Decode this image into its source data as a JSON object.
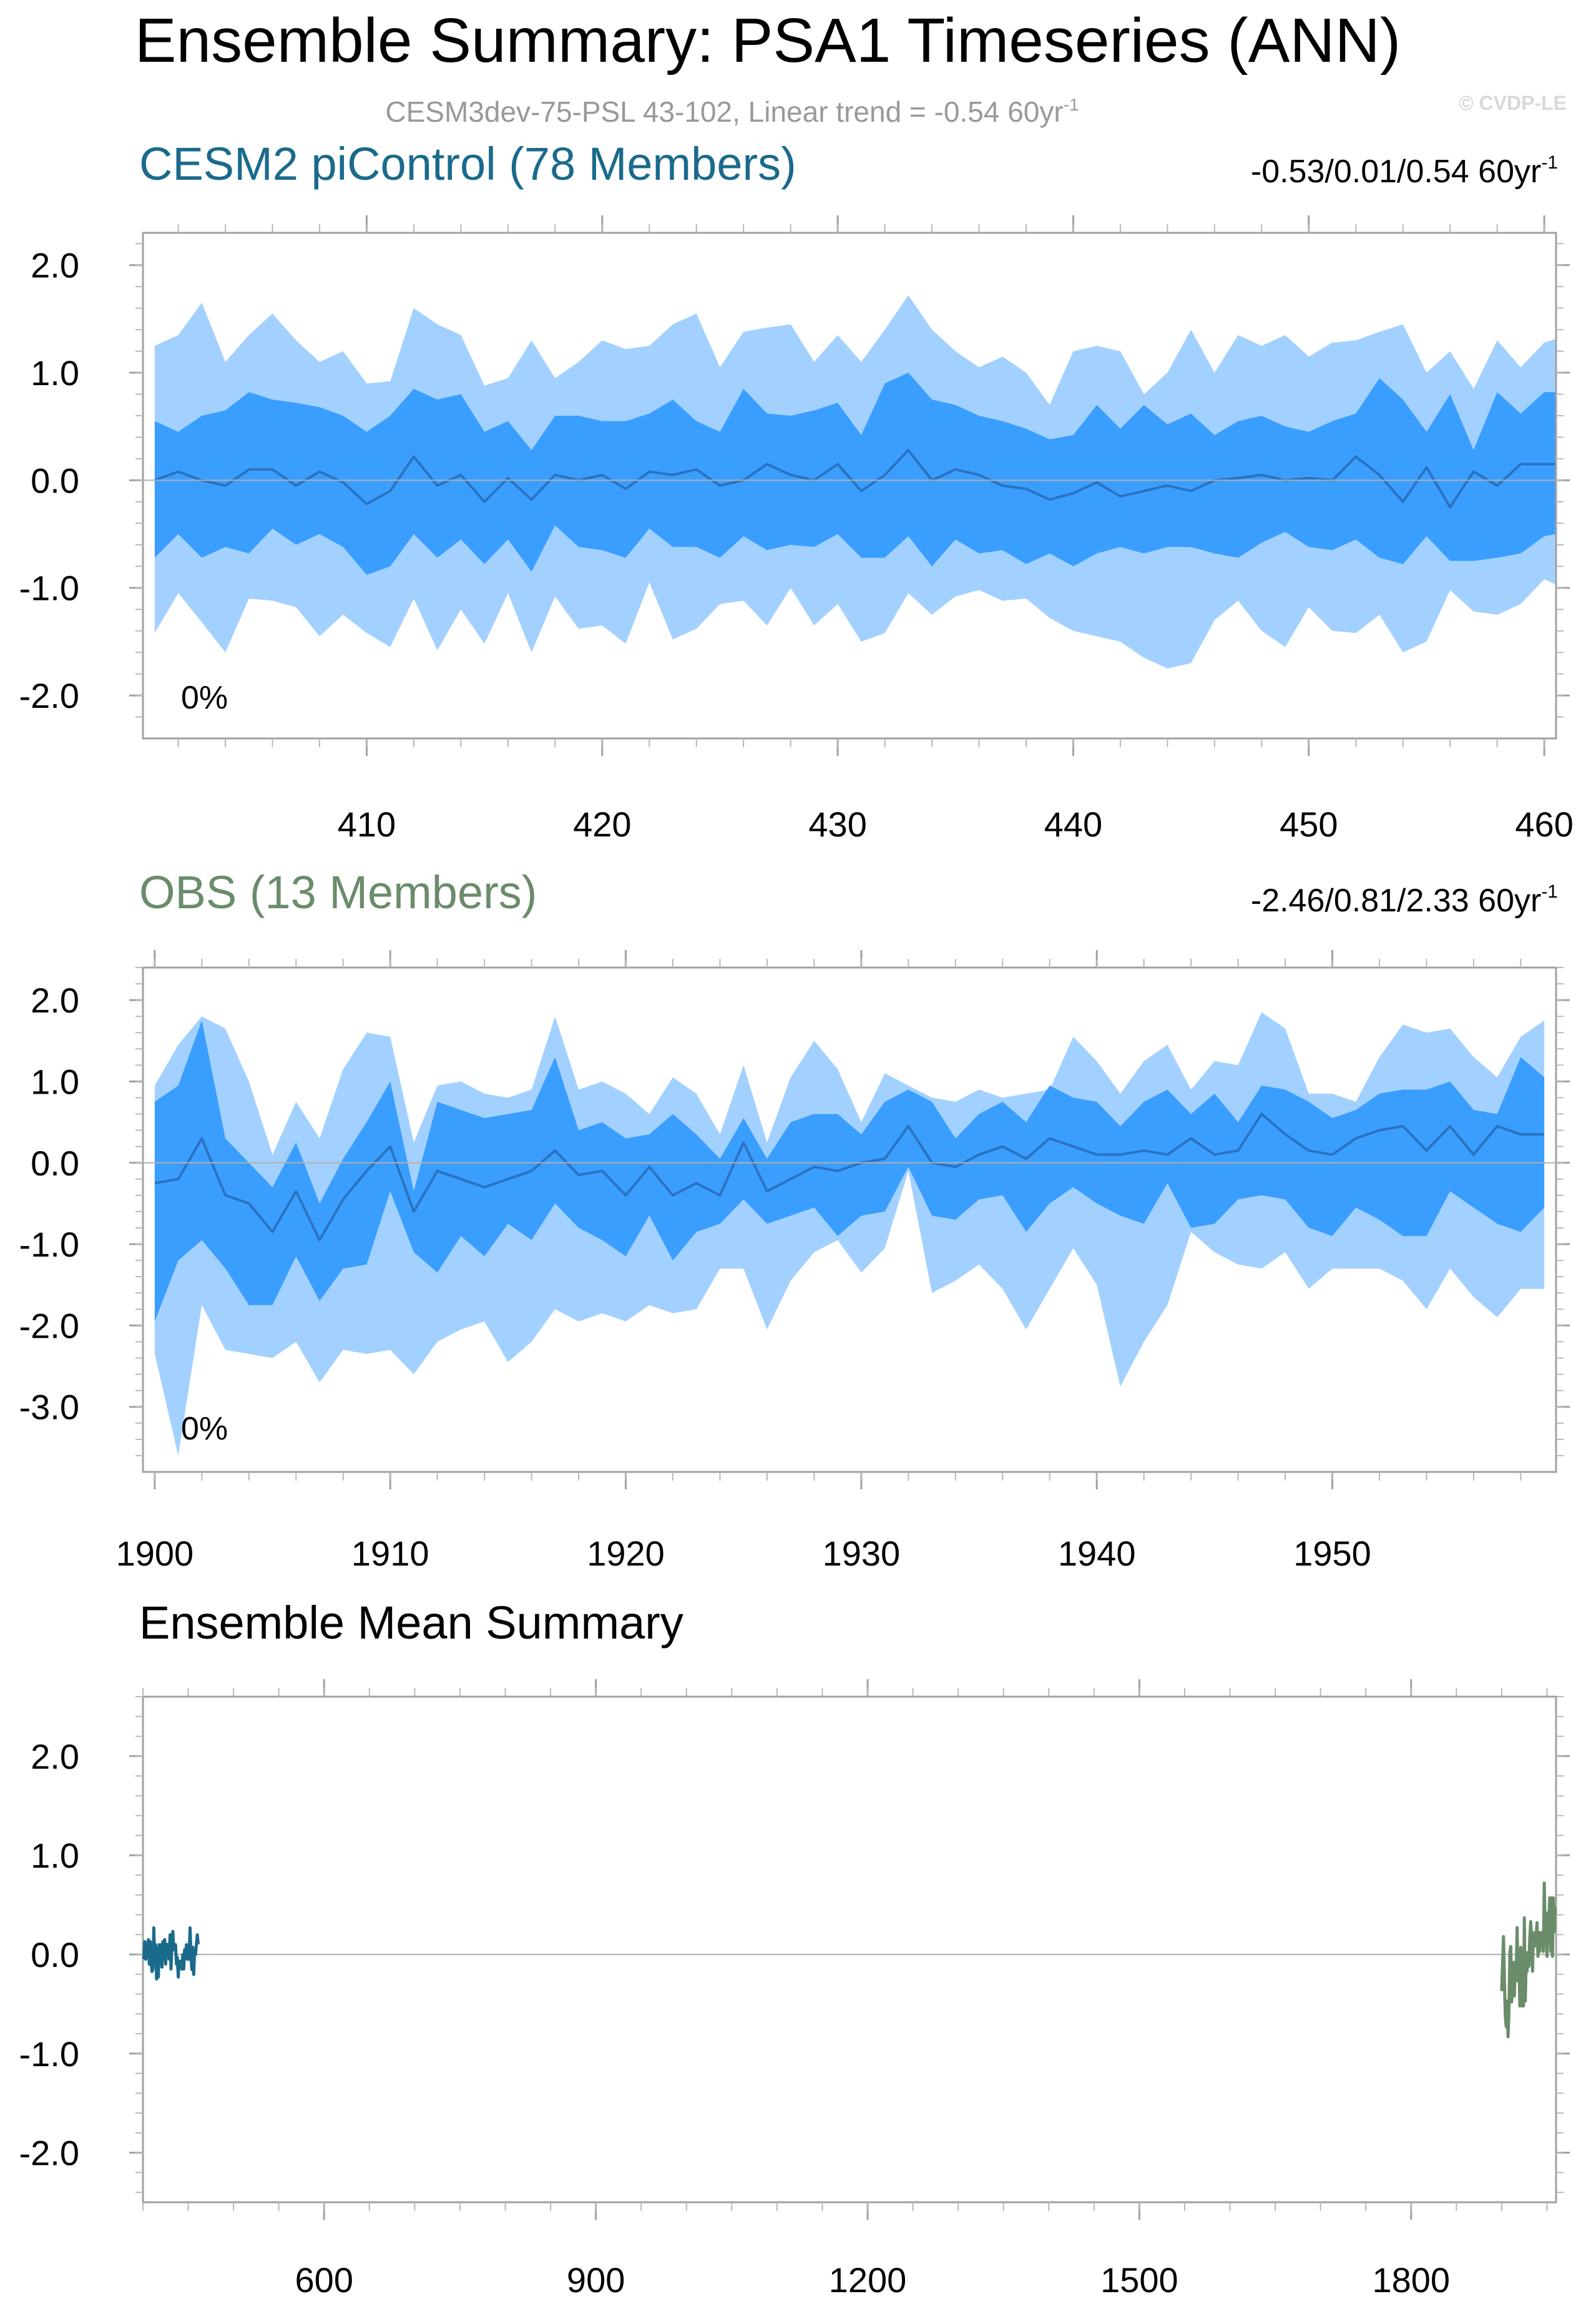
{
  "figure": {
    "title": "Ensemble Summary: PSA1 Timeseries (ANN)",
    "subtitle": "CESM3dev-75-PSL 43-102, Linear trend = -0.54 60yr",
    "subtitle_sup": "-1",
    "watermark": "© CVDP-LE"
  },
  "chart_data": [
    {
      "id": "cesm2",
      "type": "area",
      "title": "CESM2 piControl (78 Members)",
      "title_color": "#1a6a8c",
      "trend_text": "-0.53/0.01/0.54 60yr",
      "trend_sup": "-1",
      "percent_label": "0%",
      "x_start": 401,
      "xlim": [
        400.5,
        460.5
      ],
      "ylim": [
        -2.4,
        2.3
      ],
      "yticks": [
        -2.0,
        -1.0,
        0.0,
        1.0,
        2.0
      ],
      "ytick_labels": [
        "-2.0",
        "-1.0",
        "0.0",
        "1.0",
        "2.0"
      ],
      "xticks": [
        410,
        420,
        430,
        440,
        450,
        460
      ],
      "xtick_labels": [
        "410",
        "420",
        "430",
        "440",
        "450",
        "460"
      ],
      "colors": {
        "outer": "#a3d1ff",
        "inner": "#3a9eff",
        "mean": "#2a72c0"
      },
      "series": {
        "max": [
          1.25,
          1.35,
          1.65,
          1.1,
          1.35,
          1.55,
          1.3,
          1.1,
          1.2,
          0.9,
          0.92,
          1.6,
          1.45,
          1.35,
          0.88,
          0.95,
          1.3,
          0.95,
          1.1,
          1.3,
          1.22,
          1.25,
          1.45,
          1.55,
          1.05,
          1.38,
          1.42,
          1.45,
          1.1,
          1.35,
          1.1,
          1.4,
          1.72,
          1.4,
          1.2,
          1.05,
          1.15,
          1.0,
          0.7,
          1.2,
          1.25,
          1.2,
          0.8,
          1.0,
          1.4,
          1.0,
          1.35,
          1.25,
          1.35,
          1.15,
          1.28,
          1.3,
          1.38,
          1.45,
          1.0,
          1.2,
          0.85,
          1.3,
          1.05,
          1.28,
          1.35
        ],
        "q75": [
          0.55,
          0.45,
          0.6,
          0.65,
          0.82,
          0.75,
          0.72,
          0.68,
          0.6,
          0.45,
          0.6,
          0.85,
          0.75,
          0.8,
          0.45,
          0.55,
          0.28,
          0.6,
          0.6,
          0.55,
          0.55,
          0.62,
          0.75,
          0.55,
          0.45,
          0.85,
          0.62,
          0.6,
          0.65,
          0.72,
          0.42,
          0.9,
          1.0,
          0.75,
          0.7,
          0.6,
          0.55,
          0.48,
          0.38,
          0.42,
          0.7,
          0.48,
          0.7,
          0.52,
          0.62,
          0.42,
          0.55,
          0.6,
          0.5,
          0.45,
          0.55,
          0.62,
          0.95,
          0.75,
          0.45,
          0.8,
          0.28,
          0.82,
          0.62,
          0.82,
          0.82
        ],
        "mean": [
          0.0,
          0.08,
          0.0,
          -0.05,
          0.1,
          0.1,
          -0.05,
          0.08,
          -0.02,
          -0.22,
          -0.1,
          0.22,
          -0.05,
          0.05,
          -0.2,
          0.02,
          -0.18,
          0.05,
          0.0,
          0.05,
          -0.08,
          0.08,
          0.05,
          0.1,
          -0.05,
          0.0,
          0.15,
          0.05,
          0.0,
          0.15,
          -0.1,
          0.05,
          0.28,
          0.0,
          0.1,
          0.05,
          -0.05,
          -0.08,
          -0.18,
          -0.12,
          -0.02,
          -0.15,
          -0.1,
          -0.05,
          -0.1,
          0.0,
          0.02,
          0.05,
          0.0,
          0.02,
          0.0,
          0.22,
          0.05,
          -0.2,
          0.12,
          -0.25,
          0.08,
          -0.05,
          0.15,
          0.15,
          0.15
        ],
        "q25": [
          -0.72,
          -0.5,
          -0.72,
          -0.62,
          -0.68,
          -0.45,
          -0.6,
          -0.5,
          -0.62,
          -0.88,
          -0.8,
          -0.5,
          -0.72,
          -0.55,
          -0.78,
          -0.55,
          -0.85,
          -0.42,
          -0.62,
          -0.65,
          -0.72,
          -0.45,
          -0.62,
          -0.62,
          -0.72,
          -0.52,
          -0.65,
          -0.6,
          -0.62,
          -0.5,
          -0.72,
          -0.72,
          -0.52,
          -0.8,
          -0.55,
          -0.68,
          -0.65,
          -0.78,
          -0.68,
          -0.8,
          -0.68,
          -0.62,
          -0.68,
          -0.62,
          -0.62,
          -0.68,
          -0.72,
          -0.58,
          -0.48,
          -0.62,
          -0.65,
          -0.55,
          -0.72,
          -0.78,
          -0.52,
          -0.75,
          -0.75,
          -0.72,
          -0.68,
          -0.52,
          -0.48
        ],
        "min": [
          -1.42,
          -1.05,
          -1.32,
          -1.6,
          -1.1,
          -1.12,
          -1.18,
          -1.45,
          -1.25,
          -1.42,
          -1.55,
          -1.1,
          -1.58,
          -1.2,
          -1.52,
          -1.05,
          -1.6,
          -1.08,
          -1.38,
          -1.35,
          -1.52,
          -0.95,
          -1.48,
          -1.38,
          -1.15,
          -1.12,
          -1.35,
          -1.0,
          -1.35,
          -1.15,
          -1.5,
          -1.42,
          -1.05,
          -1.25,
          -1.08,
          -1.02,
          -1.12,
          -1.1,
          -1.28,
          -1.4,
          -1.45,
          -1.5,
          -1.65,
          -1.75,
          -1.7,
          -1.3,
          -1.12,
          -1.4,
          -1.55,
          -1.18,
          -1.4,
          -1.42,
          -1.25,
          -1.6,
          -1.5,
          -1.02,
          -1.22,
          -1.25,
          -1.15,
          -0.92,
          -1.02
        ]
      }
    },
    {
      "id": "obs",
      "type": "area",
      "title": "OBS (13 Members)",
      "title_color": "#6a8c6a",
      "trend_text": "-2.46/0.81/2.33 60yr",
      "trend_sup": "-1",
      "percent_label": "0%",
      "x_start": 1900,
      "xlim": [
        1899.5,
        1959.5
      ],
      "ylim": [
        -3.8,
        2.4
      ],
      "yticks": [
        -3.0,
        -2.0,
        -1.0,
        0.0,
        1.0,
        2.0
      ],
      "ytick_labels": [
        "-3.0",
        "-2.0",
        "-1.0",
        "0.0",
        "1.0",
        "2.0"
      ],
      "xticks": [
        1900,
        1910,
        1920,
        1930,
        1940,
        1950
      ],
      "xtick_labels": [
        "1900",
        "1910",
        "1920",
        "1930",
        "1940",
        "1950"
      ],
      "colors": {
        "outer": "#a3d1ff",
        "inner": "#3a9eff",
        "mean": "#2a72c0"
      },
      "series": {
        "max": [
          0.95,
          1.45,
          1.8,
          1.65,
          1.0,
          0.1,
          0.75,
          0.3,
          1.15,
          1.6,
          1.55,
          0.25,
          0.95,
          1.0,
          0.85,
          0.8,
          0.9,
          1.8,
          0.9,
          1.0,
          0.85,
          0.6,
          1.05,
          0.85,
          0.35,
          1.2,
          0.25,
          1.05,
          1.5,
          1.15,
          0.5,
          1.1,
          0.95,
          0.8,
          0.75,
          0.9,
          0.8,
          0.85,
          0.9,
          1.55,
          1.25,
          0.85,
          1.25,
          1.45,
          0.9,
          1.25,
          1.2,
          1.85,
          1.65,
          0.85,
          0.85,
          0.75,
          1.3,
          1.7,
          1.6,
          1.65,
          1.3,
          1.05,
          1.55,
          1.75
        ],
        "q75": [
          0.75,
          0.95,
          1.75,
          0.3,
          0.0,
          -0.3,
          0.25,
          -0.5,
          0.05,
          0.5,
          1.0,
          -0.35,
          0.75,
          0.65,
          0.55,
          0.6,
          0.65,
          1.3,
          0.4,
          0.5,
          0.3,
          0.35,
          0.6,
          0.35,
          0.05,
          0.55,
          0.05,
          0.5,
          0.6,
          0.6,
          0.35,
          0.75,
          0.9,
          0.75,
          0.3,
          0.6,
          0.75,
          0.5,
          0.95,
          0.8,
          0.75,
          0.45,
          0.75,
          0.9,
          0.6,
          0.85,
          0.5,
          0.95,
          0.9,
          0.75,
          0.55,
          0.65,
          0.85,
          0.9,
          0.9,
          1.0,
          0.65,
          0.6,
          1.3,
          1.05
        ],
        "mean": [
          -0.25,
          -0.2,
          0.3,
          -0.4,
          -0.5,
          -0.85,
          -0.35,
          -0.95,
          -0.45,
          -0.1,
          0.2,
          -0.6,
          -0.1,
          -0.2,
          -0.3,
          -0.2,
          -0.1,
          0.15,
          -0.15,
          -0.1,
          -0.4,
          -0.05,
          -0.4,
          -0.25,
          -0.4,
          0.25,
          -0.35,
          -0.2,
          -0.05,
          -0.1,
          0.0,
          0.05,
          0.45,
          0.0,
          -0.05,
          0.1,
          0.2,
          0.05,
          0.3,
          0.2,
          0.1,
          0.1,
          0.15,
          0.1,
          0.3,
          0.1,
          0.15,
          0.6,
          0.35,
          0.15,
          0.1,
          0.3,
          0.4,
          0.45,
          0.15,
          0.45,
          0.1,
          0.45,
          0.35,
          0.35
        ],
        "q25": [
          -1.95,
          -1.2,
          -0.95,
          -1.3,
          -1.75,
          -1.75,
          -1.15,
          -1.7,
          -1.3,
          -1.25,
          -0.35,
          -1.1,
          -1.35,
          -0.9,
          -1.15,
          -0.75,
          -0.95,
          -0.5,
          -0.8,
          -0.95,
          -1.15,
          -0.65,
          -1.2,
          -0.85,
          -0.75,
          -0.45,
          -0.75,
          -0.65,
          -0.55,
          -0.9,
          -0.65,
          -0.6,
          -0.05,
          -0.65,
          -0.7,
          -0.45,
          -0.4,
          -0.85,
          -0.5,
          -0.3,
          -0.5,
          -0.65,
          -0.75,
          -0.25,
          -0.8,
          -0.75,
          -0.45,
          -0.4,
          -0.45,
          -0.8,
          -0.9,
          -0.55,
          -0.7,
          -0.9,
          -0.9,
          -0.35,
          -0.55,
          -0.75,
          -0.85,
          -0.55
        ],
        "min": [
          -2.35,
          -3.6,
          -1.75,
          -2.3,
          -2.35,
          -2.4,
          -2.2,
          -2.7,
          -2.3,
          -2.35,
          -2.3,
          -2.6,
          -2.2,
          -2.05,
          -1.95,
          -2.45,
          -2.2,
          -1.8,
          -1.95,
          -1.85,
          -1.95,
          -1.75,
          -1.85,
          -1.8,
          -1.3,
          -1.3,
          -2.05,
          -1.45,
          -1.1,
          -0.95,
          -1.35,
          -1.05,
          -0.1,
          -1.6,
          -1.45,
          -1.25,
          -1.55,
          -2.05,
          -1.55,
          -1.05,
          -1.5,
          -2.75,
          -2.2,
          -1.75,
          -0.85,
          -1.1,
          -1.25,
          -1.3,
          -1.1,
          -1.55,
          -1.3,
          -1.3,
          -1.3,
          -1.45,
          -1.8,
          -1.3,
          -1.65,
          -1.9,
          -1.55,
          -1.55
        ]
      }
    },
    {
      "id": "summary",
      "type": "line",
      "title": "Ensemble Mean Summary",
      "title_color": "#000000",
      "xlim": [
        400,
        1960
      ],
      "ylim": [
        -2.5,
        2.6
      ],
      "yticks": [
        -2.0,
        -1.0,
        0.0,
        1.0,
        2.0
      ],
      "ytick_labels": [
        "-2.0",
        "-1.0",
        "0.0",
        "1.0",
        "2.0"
      ],
      "xticks": [
        600,
        900,
        1200,
        1500,
        1800
      ],
      "xtick_labels": [
        "600",
        "900",
        "1200",
        "1500",
        "1800"
      ],
      "series": [
        {
          "name": "CESM2 piControl",
          "color": "#1a6a8c",
          "ref": "cesm2"
        },
        {
          "name": "OBS",
          "color": "#6a8c6a",
          "ref": "obs"
        }
      ]
    }
  ]
}
